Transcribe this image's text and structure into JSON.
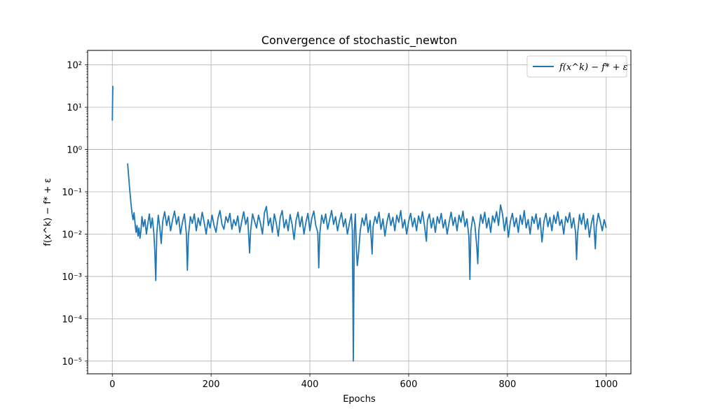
{
  "chart_data": {
    "type": "line",
    "title": "Convergence of stochastic_newton",
    "xlabel": "Epochs",
    "ylabel": "f(x^k) − f* + ε",
    "yscale": "log",
    "xlim": [
      -50,
      1050
    ],
    "ylim": [
      5e-06,
      220
    ],
    "grid": true,
    "legend_position": "top-right",
    "x_ticks": [
      0,
      200,
      400,
      600,
      800,
      1000
    ],
    "y_ticks": [
      {
        "value": 1e-05,
        "label": "10⁻⁵"
      },
      {
        "value": 0.0001,
        "label": "10⁻⁴"
      },
      {
        "value": 0.001,
        "label": "10⁻³"
      },
      {
        "value": 0.01,
        "label": "10⁻²"
      },
      {
        "value": 0.1,
        "label": "10⁻¹"
      },
      {
        "value": 1,
        "label": "10⁰"
      },
      {
        "value": 10,
        "label": "10¹"
      },
      {
        "value": 100,
        "label": "10²"
      }
    ],
    "series": [
      {
        "name": "f(x^k) − f* + ε",
        "color": "#1f77b4",
        "segments": [
          [
            [
              0,
              4.8
            ],
            [
              1,
              32
            ]
          ],
          [
            [
              31,
              0.47
            ],
            [
              35,
              0.12
            ],
            [
              38,
              0.05
            ],
            [
              40,
              0.03
            ],
            [
              42,
              0.022
            ],
            [
              44,
              0.032
            ],
            [
              46,
              0.018
            ],
            [
              48,
              0.011
            ],
            [
              50,
              0.016
            ],
            [
              52,
              0.009
            ],
            [
              54,
              0.014
            ],
            [
              56,
              0.008
            ],
            [
              58,
              0.012
            ],
            [
              60,
              0.026
            ],
            [
              63,
              0.015
            ],
            [
              66,
              0.022
            ],
            [
              69,
              0.01
            ],
            [
              72,
              0.018
            ],
            [
              75,
              0.03
            ],
            [
              78,
              0.014
            ],
            [
              81,
              0.024
            ],
            [
              84,
              0.011
            ],
            [
              86,
              0.004
            ],
            [
              88,
              0.0008
            ],
            [
              90,
              0.01
            ],
            [
              93,
              0.028
            ],
            [
              96,
              0.015
            ],
            [
              99,
              0.006
            ],
            [
              102,
              0.02
            ],
            [
              106,
              0.034
            ],
            [
              110,
              0.016
            ],
            [
              114,
              0.027
            ],
            [
              118,
              0.012
            ],
            [
              122,
              0.022
            ],
            [
              126,
              0.035
            ],
            [
              130,
              0.017
            ],
            [
              134,
              0.026
            ],
            [
              138,
              0.01
            ],
            [
              142,
              0.019
            ],
            [
              146,
              0.03
            ],
            [
              150,
              0.01
            ],
            [
              152,
              0.0014
            ],
            [
              154,
              0.009
            ],
            [
              158,
              0.026
            ],
            [
              162,
              0.018
            ],
            [
              166,
              0.03
            ],
            [
              170,
              0.012
            ],
            [
              174,
              0.024
            ],
            [
              178,
              0.016
            ],
            [
              182,
              0.033
            ],
            [
              186,
              0.019
            ],
            [
              190,
              0.01
            ],
            [
              194,
              0.022
            ],
            [
              198,
              0.014
            ],
            [
              202,
              0.028
            ],
            [
              206,
              0.016
            ],
            [
              210,
              0.011
            ],
            [
              214,
              0.024
            ],
            [
              218,
              0.036
            ],
            [
              222,
              0.017
            ],
            [
              226,
              0.013
            ],
            [
              230,
              0.026
            ],
            [
              234,
              0.019
            ],
            [
              238,
              0.031
            ],
            [
              242,
              0.013
            ],
            [
              246,
              0.022
            ],
            [
              250,
              0.016
            ],
            [
              254,
              0.027
            ],
            [
              258,
              0.011
            ],
            [
              262,
              0.02
            ],
            [
              266,
              0.034
            ],
            [
              270,
              0.017
            ],
            [
              274,
              0.025
            ],
            [
              278,
              0.0036
            ],
            [
              280,
              0.012
            ],
            [
              284,
              0.03
            ],
            [
              288,
              0.02
            ],
            [
              292,
              0.014
            ],
            [
              296,
              0.028
            ],
            [
              300,
              0.018
            ],
            [
              304,
              0.01
            ],
            [
              308,
              0.032
            ],
            [
              312,
              0.045
            ],
            [
              316,
              0.016
            ],
            [
              320,
              0.024
            ],
            [
              324,
              0.011
            ],
            [
              328,
              0.03
            ],
            [
              332,
              0.018
            ],
            [
              336,
              0.009
            ],
            [
              340,
              0.025
            ],
            [
              344,
              0.036
            ],
            [
              348,
              0.014
            ],
            [
              352,
              0.022
            ],
            [
              356,
              0.012
            ],
            [
              360,
              0.029
            ],
            [
              364,
              0.017
            ],
            [
              368,
              0.0075
            ],
            [
              372,
              0.021
            ],
            [
              376,
              0.033
            ],
            [
              380,
              0.015
            ],
            [
              384,
              0.026
            ],
            [
              388,
              0.01
            ],
            [
              392,
              0.019
            ],
            [
              396,
              0.031
            ],
            [
              400,
              0.012
            ],
            [
              404,
              0.024
            ],
            [
              408,
              0.035
            ],
            [
              412,
              0.016
            ],
            [
              416,
              0.011
            ],
            [
              418,
              0.0016
            ],
            [
              420,
              0.01
            ],
            [
              424,
              0.028
            ],
            [
              428,
              0.018
            ],
            [
              432,
              0.03
            ],
            [
              436,
              0.013
            ],
            [
              440,
              0.022
            ],
            [
              444,
              0.036
            ],
            [
              448,
              0.017
            ],
            [
              452,
              0.026
            ],
            [
              456,
              0.012
            ],
            [
              460,
              0.021
            ],
            [
              464,
              0.032
            ],
            [
              468,
              0.015
            ],
            [
              472,
              0.023
            ],
            [
              476,
              0.01
            ],
            [
              480,
              0.018
            ],
            [
              484,
              0.03
            ],
            [
              486,
              0.012
            ],
            [
              488,
              1e-05
            ],
            [
              490,
              0.012
            ],
            [
              492,
              0.03
            ],
            [
              494,
              0.005
            ],
            [
              496,
              0.0018
            ],
            [
              498,
              0.003
            ],
            [
              502,
              0.012
            ],
            [
              506,
              0.024
            ],
            [
              510,
              0.016
            ],
            [
              514,
              0.03
            ],
            [
              518,
              0.011
            ],
            [
              522,
              0.021
            ],
            [
              526,
              0.0034
            ],
            [
              528,
              0.015
            ],
            [
              532,
              0.026
            ],
            [
              536,
              0.018
            ],
            [
              540,
              0.033
            ],
            [
              544,
              0.013
            ],
            [
              548,
              0.023
            ],
            [
              552,
              0.009
            ],
            [
              556,
              0.019
            ],
            [
              560,
              0.031
            ],
            [
              564,
              0.016
            ],
            [
              568,
              0.025
            ],
            [
              572,
              0.012
            ],
            [
              576,
              0.028
            ],
            [
              580,
              0.019
            ],
            [
              584,
              0.036
            ],
            [
              588,
              0.014
            ],
            [
              592,
              0.022
            ],
            [
              596,
              0.01
            ],
            [
              600,
              0.02
            ],
            [
              604,
              0.031
            ],
            [
              608,
              0.015
            ],
            [
              612,
              0.024
            ],
            [
              616,
              0.012
            ],
            [
              620,
              0.027
            ],
            [
              624,
              0.018
            ],
            [
              628,
              0.034
            ],
            [
              632,
              0.016
            ],
            [
              636,
              0.0068
            ],
            [
              638,
              0.021
            ],
            [
              642,
              0.03
            ],
            [
              646,
              0.014
            ],
            [
              650,
              0.024
            ],
            [
              654,
              0.011
            ],
            [
              658,
              0.026
            ],
            [
              662,
              0.018
            ],
            [
              666,
              0.031
            ],
            [
              670,
              0.014
            ],
            [
              674,
              0.022
            ],
            [
              678,
              0.01
            ],
            [
              682,
              0.019
            ],
            [
              686,
              0.033
            ],
            [
              690,
              0.016
            ],
            [
              694,
              0.025
            ],
            [
              698,
              0.012
            ],
            [
              702,
              0.028
            ],
            [
              706,
              0.019
            ],
            [
              710,
              0.035
            ],
            [
              714,
              0.015
            ],
            [
              718,
              0.023
            ],
            [
              722,
              0.0085
            ],
            [
              724,
              0.00085
            ],
            [
              726,
              0.012
            ],
            [
              730,
              0.026
            ],
            [
              734,
              0.017
            ],
            [
              738,
              0.005
            ],
            [
              740,
              0.002
            ],
            [
              742,
              0.012
            ],
            [
              746,
              0.029
            ],
            [
              750,
              0.018
            ],
            [
              754,
              0.033
            ],
            [
              758,
              0.014
            ],
            [
              762,
              0.024
            ],
            [
              766,
              0.011
            ],
            [
              770,
              0.027
            ],
            [
              774,
              0.019
            ],
            [
              778,
              0.034
            ],
            [
              782,
              0.016
            ],
            [
              786,
              0.049
            ],
            [
              790,
              0.03
            ],
            [
              794,
              0.012
            ],
            [
              798,
              0.025
            ],
            [
              802,
              0.0085
            ],
            [
              806,
              0.02
            ],
            [
              810,
              0.031
            ],
            [
              814,
              0.015
            ],
            [
              818,
              0.024
            ],
            [
              822,
              0.011
            ],
            [
              826,
              0.028
            ],
            [
              830,
              0.017
            ],
            [
              834,
              0.036
            ],
            [
              838,
              0.014
            ],
            [
              842,
              0.022
            ],
            [
              846,
              0.01
            ],
            [
              850,
              0.026
            ],
            [
              854,
              0.018
            ],
            [
              858,
              0.03
            ],
            [
              862,
              0.013
            ],
            [
              866,
              0.024
            ],
            [
              870,
              0.0065
            ],
            [
              874,
              0.02
            ],
            [
              878,
              0.031
            ],
            [
              882,
              0.015
            ],
            [
              886,
              0.025
            ],
            [
              890,
              0.012
            ],
            [
              894,
              0.028
            ],
            [
              898,
              0.018
            ],
            [
              902,
              0.034
            ],
            [
              906,
              0.016
            ],
            [
              910,
              0.022
            ],
            [
              914,
              0.01
            ],
            [
              918,
              0.026
            ],
            [
              922,
              0.019
            ],
            [
              926,
              0.032
            ],
            [
              930,
              0.014
            ],
            [
              934,
              0.024
            ],
            [
              938,
              0.011
            ],
            [
              940,
              0.0025
            ],
            [
              942,
              0.01
            ],
            [
              946,
              0.029
            ],
            [
              950,
              0.017
            ],
            [
              954,
              0.031
            ],
            [
              958,
              0.013
            ],
            [
              962,
              0.023
            ],
            [
              966,
              0.0085
            ],
            [
              970,
              0.018
            ],
            [
              974,
              0.028
            ],
            [
              978,
              0.0045
            ],
            [
              980,
              0.015
            ],
            [
              984,
              0.031
            ],
            [
              988,
              0.02
            ],
            [
              992,
              0.012
            ],
            [
              996,
              0.022
            ],
            [
              1000,
              0.014
            ]
          ]
        ]
      }
    ]
  }
}
